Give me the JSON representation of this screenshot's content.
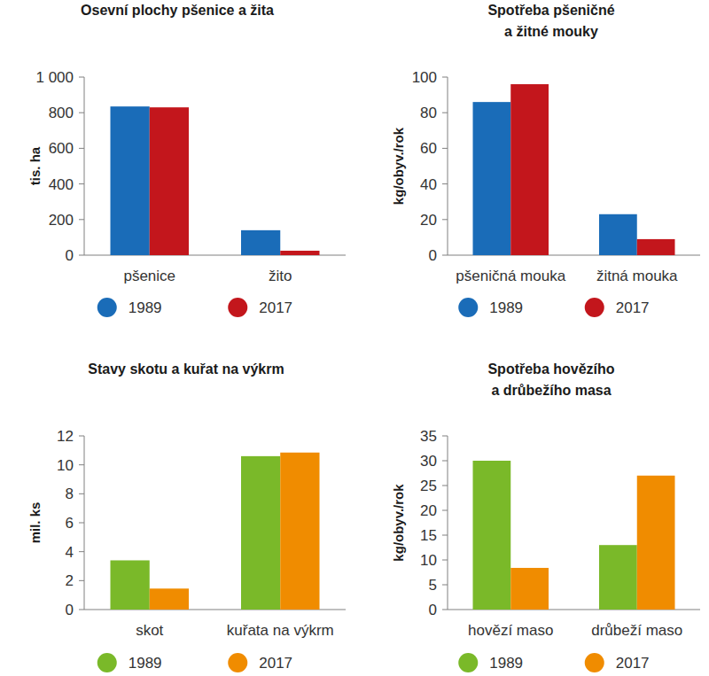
{
  "chart_data": [
    {
      "type": "bar",
      "title": "Osevní plochy pšenice a žita",
      "y_label": "tis. ha",
      "categories": [
        "pšenice",
        "žito"
      ],
      "series": [
        {
          "name": "1989",
          "color": "#1a6cb8",
          "values": [
            835,
            140
          ]
        },
        {
          "name": "2017",
          "color": "#c3161c",
          "values": [
            830,
            25
          ]
        }
      ],
      "ylim": [
        0,
        1000
      ],
      "yticks": [
        0,
        200,
        400,
        600,
        800,
        {
          "value": 1000,
          "label": "1 000"
        }
      ],
      "grid": false,
      "legend": "bottom"
    },
    {
      "type": "bar",
      "title": "Spotřeba pšeničné\na žitné mouky",
      "y_label": "kg/obyv./rok",
      "categories": [
        "pšeničná mouka",
        "žitná mouka"
      ],
      "series": [
        {
          "name": "1989",
          "color": "#1a6cb8",
          "values": [
            86,
            23
          ]
        },
        {
          "name": "2017",
          "color": "#c3161c",
          "values": [
            96,
            9
          ]
        }
      ],
      "ylim": [
        0,
        100
      ],
      "yticks": [
        0,
        20,
        40,
        60,
        80,
        100
      ],
      "grid": false,
      "legend": "bottom"
    },
    {
      "type": "bar",
      "title": "Stavy skotu a kuřat na výkrm",
      "y_label": "mil. ks",
      "categories": [
        "skot",
        "kuřata na výkrm"
      ],
      "series": [
        {
          "name": "1989",
          "color": "#7ab929",
          "values": [
            3.4,
            10.6
          ]
        },
        {
          "name": "2017",
          "color": "#f08c00",
          "values": [
            1.45,
            10.85
          ]
        }
      ],
      "ylim": [
        0,
        12
      ],
      "yticks": [
        0,
        2,
        4,
        6,
        8,
        10,
        12
      ],
      "grid": false,
      "legend": "bottom"
    },
    {
      "type": "bar",
      "title": "Spotřeba hovězího\na drůbežího masa",
      "y_label": "kg/obyv./rok",
      "categories": [
        "hovězí maso",
        "drůbeží maso"
      ],
      "series": [
        {
          "name": "1989",
          "color": "#7ab929",
          "values": [
            30,
            13
          ]
        },
        {
          "name": "2017",
          "color": "#f08c00",
          "values": [
            8.4,
            27
          ]
        }
      ],
      "ylim": [
        0,
        35
      ],
      "yticks": [
        0,
        5,
        10,
        15,
        20,
        25,
        30,
        35
      ],
      "grid": false,
      "legend": "bottom"
    }
  ]
}
